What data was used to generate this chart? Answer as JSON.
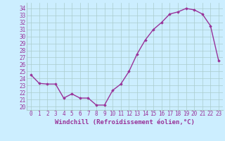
{
  "x": [
    0,
    1,
    2,
    3,
    4,
    5,
    6,
    7,
    8,
    9,
    10,
    11,
    12,
    13,
    14,
    15,
    16,
    17,
    18,
    19,
    20,
    21,
    22,
    23
  ],
  "y": [
    24.5,
    23.3,
    23.2,
    23.2,
    21.2,
    21.8,
    21.2,
    21.2,
    20.2,
    20.2,
    22.3,
    23.2,
    25.0,
    27.5,
    29.5,
    31.0,
    32.0,
    33.2,
    33.5,
    34.0,
    33.8,
    33.2,
    31.5,
    26.5
  ],
  "line_color": "#993399",
  "marker": "D",
  "marker_size": 1.8,
  "bg_color": "#cceeff",
  "grid_color": "#aacccc",
  "xlabel": "Windchill (Refroidissement éolien,°C)",
  "xlim": [
    -0.5,
    23.5
  ],
  "ylim": [
    19.5,
    34.8
  ],
  "xticks": [
    0,
    1,
    2,
    3,
    4,
    5,
    6,
    7,
    8,
    9,
    10,
    11,
    12,
    13,
    14,
    15,
    16,
    17,
    18,
    19,
    20,
    21,
    22,
    23
  ],
  "yticks": [
    20,
    21,
    22,
    23,
    24,
    25,
    26,
    27,
    28,
    29,
    30,
    31,
    32,
    33,
    34
  ],
  "tick_label_size": 5.5,
  "xlabel_size": 6.5,
  "line_width": 1.0
}
